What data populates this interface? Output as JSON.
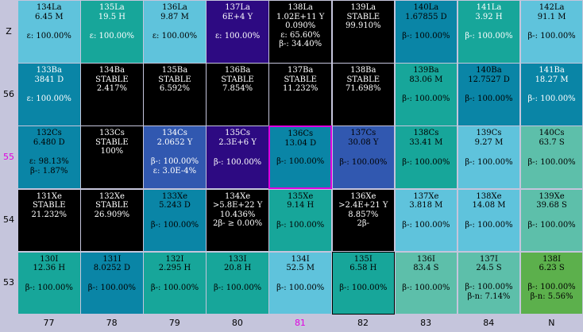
{
  "rows": [
    {
      "label": "Z",
      "label_color": "#000000",
      "cells": [
        {
          "name": "134La",
          "info": "6.45 M",
          "decays": [
            "ε: 100.00%"
          ],
          "bg": "#5fc3dc",
          "fg": "#000000"
        },
        {
          "name": "135La",
          "info": "19.5 H",
          "decays": [
            "ε: 100.00%"
          ],
          "bg": "#17a69a",
          "fg": "#ffffff"
        },
        {
          "name": "136La",
          "info": "9.87 M",
          "decays": [
            "ε: 100.00%"
          ],
          "bg": "#5fc3dc",
          "fg": "#000000"
        },
        {
          "name": "137La",
          "info": "6E+4 Y",
          "decays": [
            "ε: 100.00%"
          ],
          "bg": "#2d0a82",
          "fg": "#ffffff"
        },
        {
          "name": "138La",
          "info": "1.02E+11 Y",
          "extra": "0.090%",
          "decays": [
            "ε: 65.60%",
            "β-: 34.40%"
          ],
          "bg": "#000000",
          "fg": "#ffffff"
        },
        {
          "name": "139La",
          "info": "STABLE",
          "extra": "99.910%",
          "decays": [],
          "bg": "#000000",
          "fg": "#ffffff"
        },
        {
          "name": "140La",
          "info": "1.67855 D",
          "decays": [
            "β-: 100.00%"
          ],
          "bg": "#0a85a6",
          "fg": "#000000"
        },
        {
          "name": "141La",
          "info": "3.92 H",
          "decays": [
            "β-: 100.00%"
          ],
          "bg": "#17a69a",
          "fg": "#ffffff"
        },
        {
          "name": "142La",
          "info": "91.1 M",
          "decays": [
            "β-: 100.00%"
          ],
          "bg": "#5fc3dc",
          "fg": "#000000"
        }
      ]
    },
    {
      "label": "56",
      "label_color": "#000000",
      "cells": [
        {
          "name": "133Ba",
          "info": "3841 D",
          "decays": [
            "ε: 100.00%"
          ],
          "bg": "#0a85a6",
          "fg": "#ffffff"
        },
        {
          "name": "134Ba",
          "info": "STABLE",
          "extra": "2.417%",
          "decays": [],
          "bg": "#000000",
          "fg": "#ffffff"
        },
        {
          "name": "135Ba",
          "info": "STABLE",
          "extra": "6.592%",
          "decays": [],
          "bg": "#000000",
          "fg": "#ffffff"
        },
        {
          "name": "136Ba",
          "info": "STABLE",
          "extra": "7.854%",
          "decays": [],
          "bg": "#000000",
          "fg": "#ffffff"
        },
        {
          "name": "137Ba",
          "info": "STABLE",
          "extra": "11.232%",
          "decays": [],
          "bg": "#000000",
          "fg": "#ffffff"
        },
        {
          "name": "138Ba",
          "info": "STABLE",
          "extra": "71.698%",
          "decays": [],
          "bg": "#000000",
          "fg": "#ffffff"
        },
        {
          "name": "139Ba",
          "info": "83.06 M",
          "decays": [
            "β-: 100.00%"
          ],
          "bg": "#17a69a",
          "fg": "#000000"
        },
        {
          "name": "140Ba",
          "info": "12.7527 D",
          "decays": [
            "β-: 100.00%"
          ],
          "bg": "#0a85a6",
          "fg": "#000000"
        },
        {
          "name": "141Ba",
          "info": "18.27 M",
          "decays": [
            "β-: 100.00%"
          ],
          "bg": "#0a85a6",
          "fg": "#ffffff"
        }
      ]
    },
    {
      "label": "55",
      "label_color": "#e000e0",
      "cells": [
        {
          "name": "132Cs",
          "info": "6.480 D",
          "decays": [
            "ε: 98.13%",
            "β-: 1.87%"
          ],
          "bg": "#0a85a6",
          "fg": "#000000"
        },
        {
          "name": "133Cs",
          "info": "STABLE",
          "extra": "100%",
          "decays": [],
          "bg": "#000000",
          "fg": "#ffffff"
        },
        {
          "name": "134Cs",
          "info": "2.0652 Y",
          "decays": [
            "β-: 100.00%",
            "ε: 3.0E-4%"
          ],
          "bg": "#3158b0",
          "fg": "#ffffff"
        },
        {
          "name": "135Cs",
          "info": "2.3E+6 Y",
          "decays": [
            "β-: 100.00%"
          ],
          "bg": "#2d0a82",
          "fg": "#ffffff"
        },
        {
          "name": "136Cs",
          "info": "13.04 D",
          "decays": [
            "β-: 100.00%"
          ],
          "bg": "#0a85a6",
          "fg": "#000000",
          "selected": true
        },
        {
          "name": "137Cs",
          "info": "30.08 Y",
          "decays": [
            "β-: 100.00%"
          ],
          "bg": "#3158b0",
          "fg": "#000000"
        },
        {
          "name": "138Cs",
          "info": "33.41 M",
          "decays": [
            "β-: 100.00%"
          ],
          "bg": "#17a69a",
          "fg": "#000000"
        },
        {
          "name": "139Cs",
          "info": "9.27 M",
          "decays": [
            "β-: 100.00%"
          ],
          "bg": "#5fc3dc",
          "fg": "#000000"
        },
        {
          "name": "140Cs",
          "info": "63.7 S",
          "decays": [
            "β-: 100.00%"
          ],
          "bg": "#5dbfaa",
          "fg": "#000000"
        }
      ]
    },
    {
      "label": "54",
      "label_color": "#000000",
      "cells": [
        {
          "name": "131Xe",
          "info": "STABLE",
          "extra": "21.232%",
          "decays": [],
          "bg": "#000000",
          "fg": "#ffffff"
        },
        {
          "name": "132Xe",
          "info": "STABLE",
          "extra": "26.909%",
          "decays": [],
          "bg": "#000000",
          "fg": "#ffffff"
        },
        {
          "name": "133Xe",
          "info": "5.243 D",
          "decays": [
            "β-: 100.00%"
          ],
          "bg": "#0a85a6",
          "fg": "#000000"
        },
        {
          "name": "134Xe",
          "info": ">5.8E+22 Y",
          "extra": "10.436%",
          "decays": [
            "2β- ≥ 0.00%"
          ],
          "bg": "#000000",
          "fg": "#ffffff"
        },
        {
          "name": "135Xe",
          "info": "9.14 H",
          "decays": [
            "β-: 100.00%"
          ],
          "bg": "#17a69a",
          "fg": "#000000"
        },
        {
          "name": "136Xe",
          "info": ">2.4E+21 Y",
          "extra": "8.857%",
          "decays": [
            "2β-"
          ],
          "bg": "#000000",
          "fg": "#ffffff"
        },
        {
          "name": "137Xe",
          "info": "3.818 M",
          "decays": [
            "β-: 100.00%"
          ],
          "bg": "#5fc3dc",
          "fg": "#000000"
        },
        {
          "name": "138Xe",
          "info": "14.08 M",
          "decays": [
            "β-: 100.00%"
          ],
          "bg": "#5fc3dc",
          "fg": "#000000"
        },
        {
          "name": "139Xe",
          "info": "39.68 S",
          "decays": [
            "β-: 100.00%"
          ],
          "bg": "#5dbfaa",
          "fg": "#000000"
        }
      ]
    },
    {
      "label": "53",
      "label_color": "#000000",
      "cells": [
        {
          "name": "130I",
          "info": "12.36 H",
          "decays": [
            "β-: 100.00%"
          ],
          "bg": "#17a69a",
          "fg": "#000000"
        },
        {
          "name": "131I",
          "info": "8.0252 D",
          "decays": [
            "β-: 100.00%"
          ],
          "bg": "#0a85a6",
          "fg": "#000000"
        },
        {
          "name": "132I",
          "info": "2.295 H",
          "decays": [
            "β-: 100.00%"
          ],
          "bg": "#17a69a",
          "fg": "#000000"
        },
        {
          "name": "133I",
          "info": "20.8 H",
          "decays": [
            "β-: 100.00%"
          ],
          "bg": "#17a69a",
          "fg": "#000000"
        },
        {
          "name": "134I",
          "info": "52.5 M",
          "decays": [
            "β-: 100.00%"
          ],
          "bg": "#5fc3dc",
          "fg": "#000000"
        },
        {
          "name": "135I",
          "info": "6.58 H",
          "decays": [
            "β-: 100.00%"
          ],
          "bg": "#17a69a",
          "fg": "#000000",
          "bordered": true
        },
        {
          "name": "136I",
          "info": "83.4 S",
          "decays": [
            "β-: 100.00%"
          ],
          "bg": "#5dbfaa",
          "fg": "#000000"
        },
        {
          "name": "137I",
          "info": "24.5 S",
          "decays": [
            "β-: 100.00%",
            "β-n: 7.14%"
          ],
          "bg": "#5dbfaa",
          "fg": "#000000"
        },
        {
          "name": "138I",
          "info": "6.23 S",
          "decays": [
            "β-: 100.00%",
            "β-n: 5.56%"
          ],
          "bg": "#5cb04c",
          "fg": "#000000"
        }
      ]
    }
  ],
  "columns": [
    {
      "label": "77",
      "color": "#000000"
    },
    {
      "label": "78",
      "color": "#000000"
    },
    {
      "label": "79",
      "color": "#000000"
    },
    {
      "label": "80",
      "color": "#000000"
    },
    {
      "label": "81",
      "color": "#e000e0"
    },
    {
      "label": "82",
      "color": "#000000"
    },
    {
      "label": "83",
      "color": "#000000"
    },
    {
      "label": "84",
      "color": "#000000"
    },
    {
      "label": "N",
      "color": "#000000"
    }
  ]
}
